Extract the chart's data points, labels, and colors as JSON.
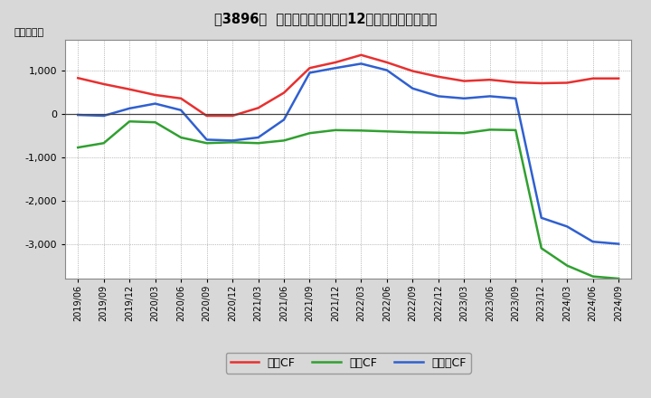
{
  "title": "[■ 3896■]  キャッシュフローの12か月移動合計の推移",
  "title_text": "[\u00003896\u0000]  キャッシュフローの12か月移動合計の推移",
  "ylabel": "（百万円）",
  "background_color": "#d8d8d8",
  "plot_bg_color": "#ffffff",
  "grid_color": "#888888",
  "x_labels": [
    "2019/06",
    "2019/09",
    "2019/12",
    "2020/03",
    "2020/06",
    "2020/09",
    "2020/12",
    "2021/03",
    "2021/06",
    "2021/09",
    "2021/12",
    "2022/03",
    "2022/06",
    "2022/09",
    "2022/12",
    "2023/03",
    "2023/06",
    "2023/09",
    "2023/12",
    "2024/03",
    "2024/06",
    "2024/09"
  ],
  "eigyo_cf": [
    820,
    680,
    560,
    430,
    350,
    -50,
    -50,
    130,
    480,
    1050,
    1180,
    1350,
    1180,
    980,
    850,
    750,
    780,
    720,
    700,
    710,
    810,
    810
  ],
  "toshi_cf": [
    -780,
    -680,
    -180,
    -200,
    -550,
    -680,
    -660,
    -680,
    -620,
    -450,
    -380,
    -390,
    -410,
    -430,
    -440,
    -450,
    -370,
    -380,
    -3100,
    -3500,
    -3750,
    -3800
  ],
  "free_cf": [
    -30,
    -50,
    120,
    230,
    80,
    -600,
    -620,
    -550,
    -140,
    940,
    1050,
    1150,
    1000,
    580,
    400,
    350,
    400,
    350,
    -2400,
    -2600,
    -2950,
    -3000
  ],
  "ylim": [
    -3800,
    1700
  ],
  "yticks": [
    -3000,
    -2000,
    -1000,
    0,
    1000
  ],
  "line_colors_eigyo": "#e83030",
  "line_colors_toshi": "#30a030",
  "line_colors_free": "#3060d0",
  "line_width": 1.8,
  "label_eigyo": "営業CF",
  "label_toshi": "投資CF",
  "label_free": "フリーCF"
}
